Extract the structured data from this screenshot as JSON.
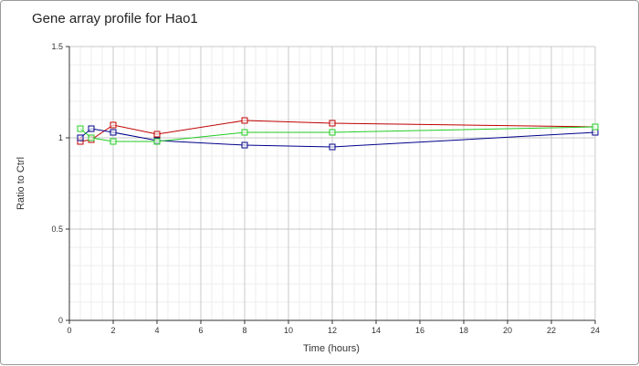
{
  "chart_data": {
    "type": "line",
    "title": "Gene array profile for Hao1",
    "xlabel": "Time (hours)",
    "ylabel": "Ratio to Ctrl",
    "xlim": [
      0,
      24
    ],
    "ylim": [
      0,
      1.5
    ],
    "xticks": [
      0,
      2,
      4,
      6,
      8,
      10,
      12,
      14,
      16,
      18,
      20,
      22,
      24
    ],
    "yticks": [
      0,
      0.5,
      1,
      1.5
    ],
    "grid": true,
    "minor_grid": true,
    "x": [
      0.5,
      1,
      2,
      4,
      8,
      12,
      24
    ],
    "series": [
      {
        "color": "#c00000",
        "marker": "square",
        "values": [
          0.98,
          0.99,
          1.07,
          1.02,
          1.095,
          1.08,
          1.06
        ]
      },
      {
        "color": "#00008b",
        "marker": "square",
        "values": [
          1.0,
          1.05,
          1.03,
          0.985,
          0.96,
          0.95,
          1.03
        ]
      },
      {
        "color": "#22cc22",
        "marker": "square",
        "values": [
          1.05,
          1.0,
          0.98,
          0.98,
          1.03,
          1.03,
          1.06
        ]
      }
    ]
  }
}
